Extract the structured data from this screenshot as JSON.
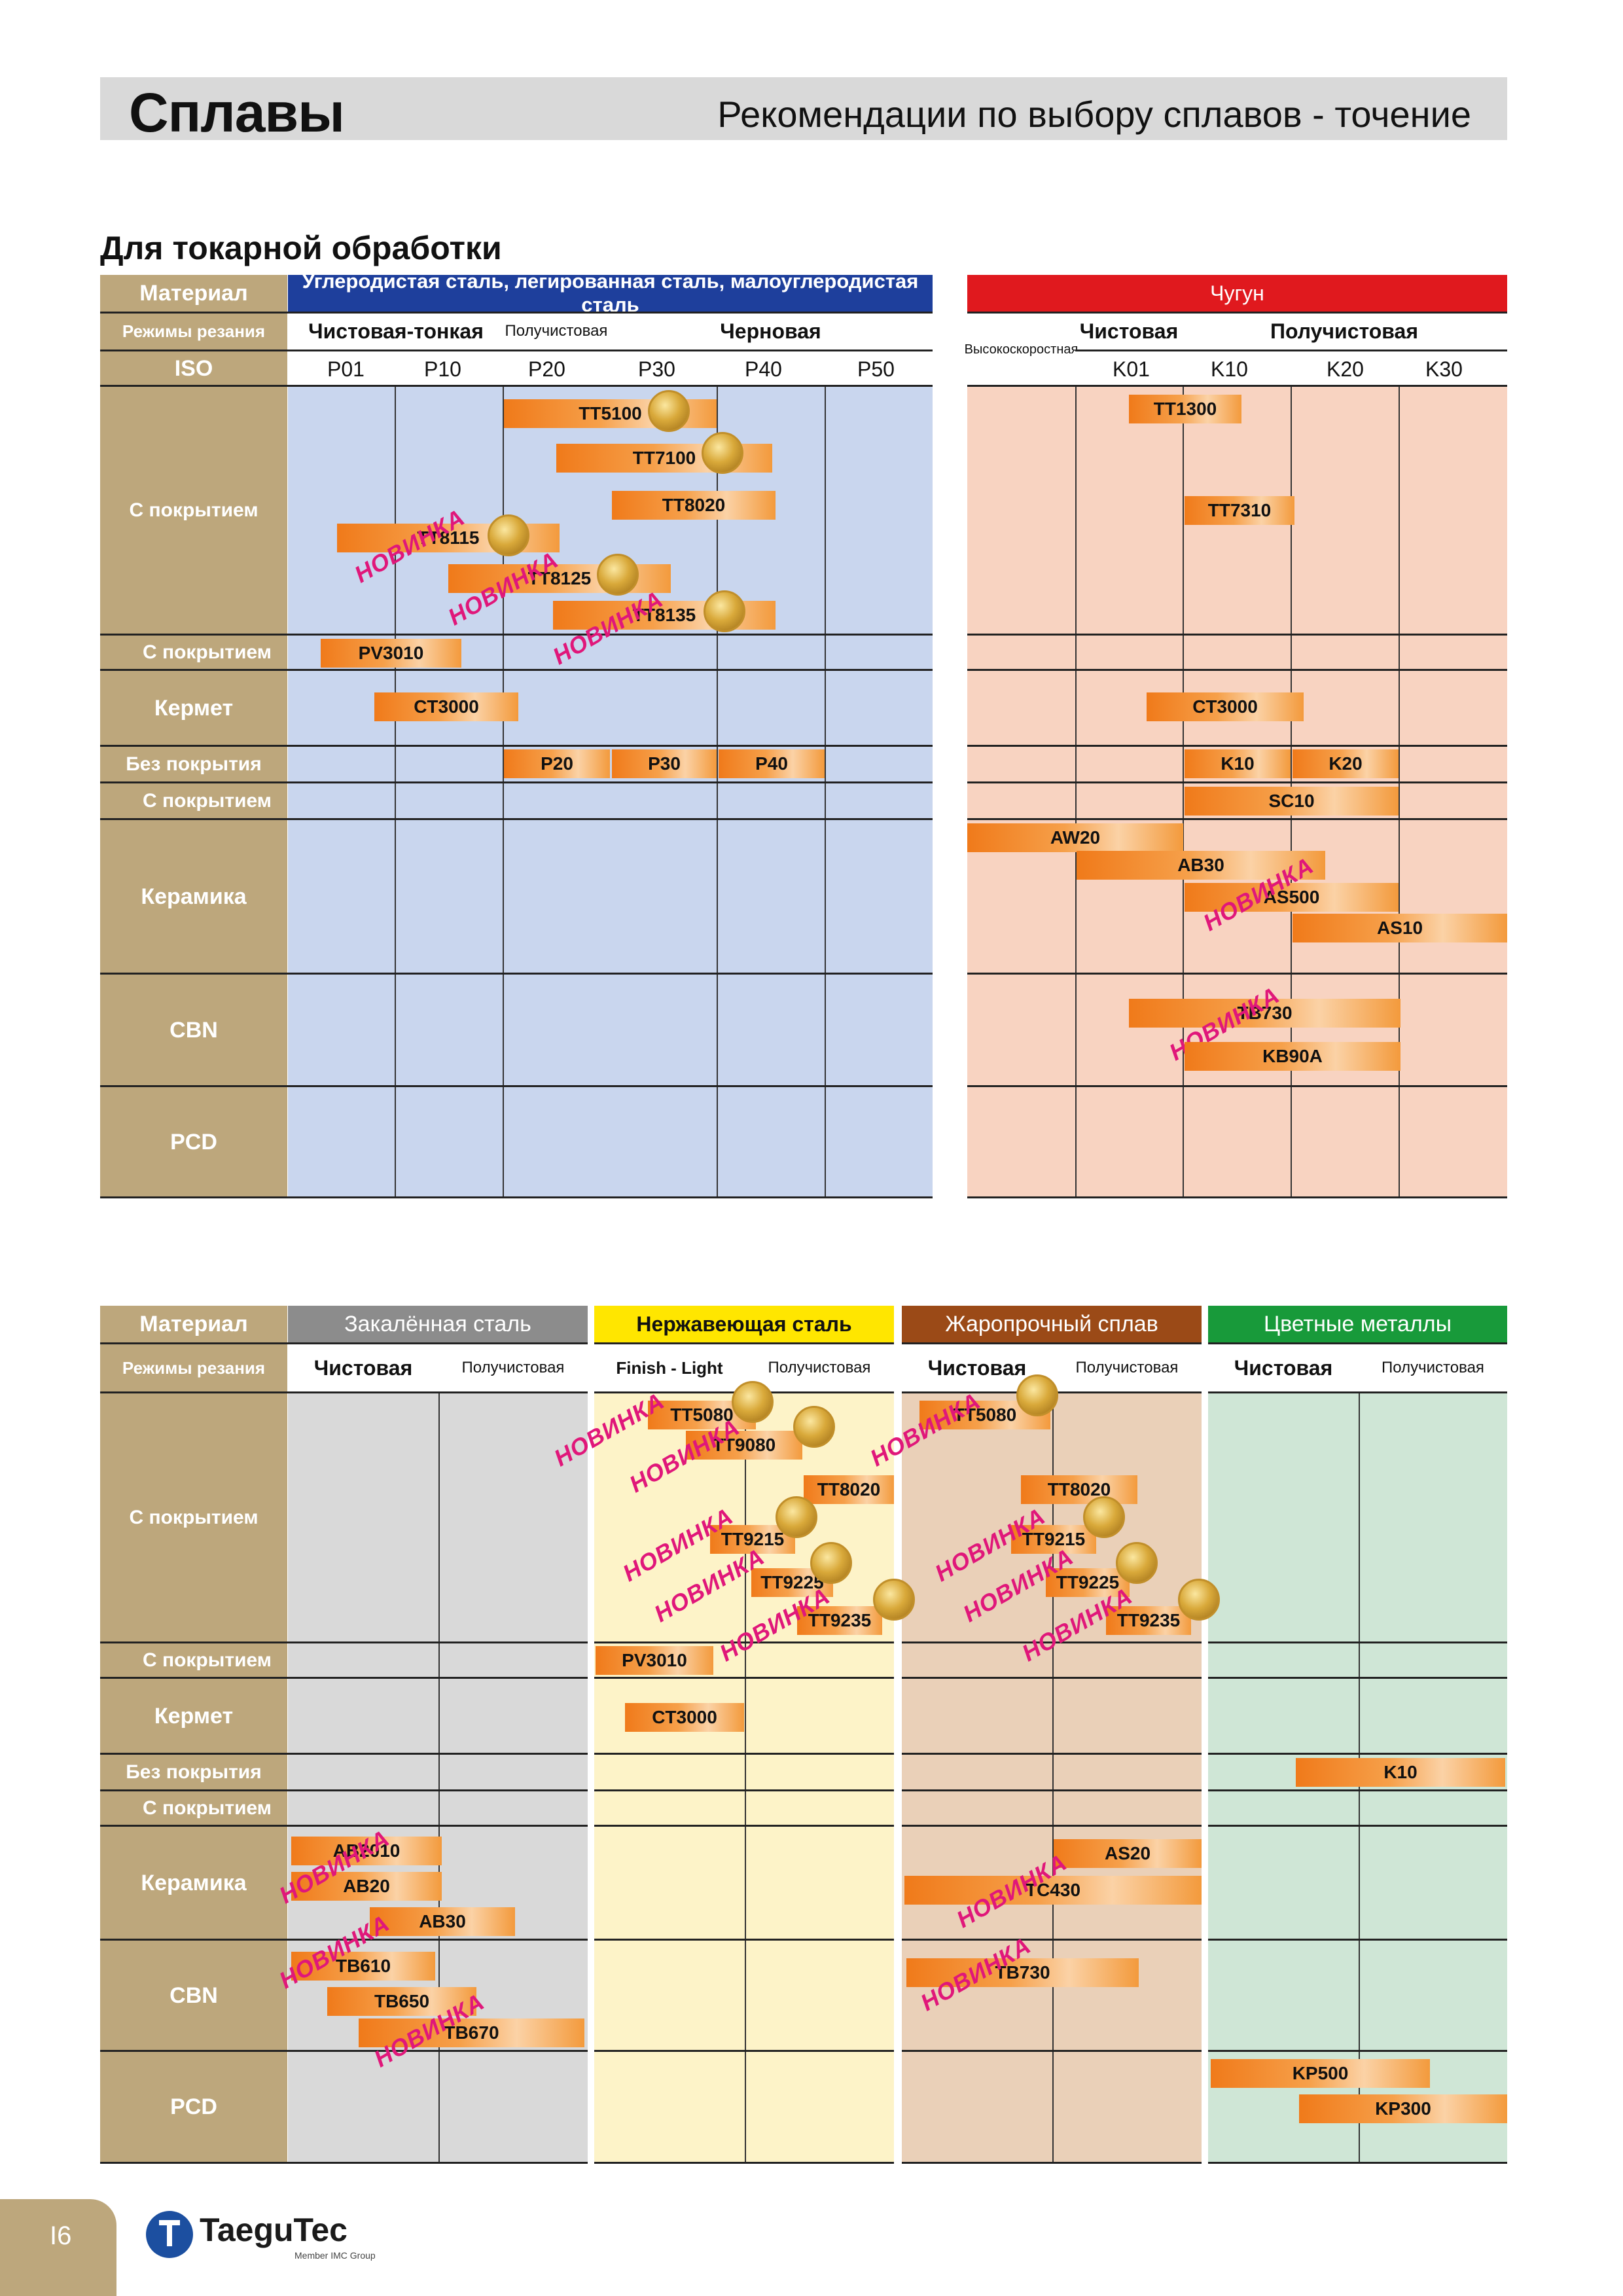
{
  "header": {
    "title": "Сплавы",
    "subtitle": "Рекомендации по выбору сплавов - точение"
  },
  "section_title": "Для токарной обработки",
  "rows": {
    "material": "Материал",
    "modes": "Режимы резания",
    "iso": "ISO",
    "coated": "С покрытием",
    "cermet": "Кермет",
    "uncoated": "Без покрытия",
    "ceramic": "Керамика",
    "cbn": "CBN",
    "pcd": "PCD"
  },
  "new_label": "НОВИНКА",
  "top_table": {
    "steel": {
      "title": "Углеродистая сталь, легированная сталь, малоуглеродистая сталь",
      "modes": [
        "Чистовая-тонкая",
        "Получистовая",
        "Черновая"
      ],
      "iso": [
        "P01",
        "P10",
        "P20",
        "P30",
        "P40",
        "P50"
      ],
      "grades": [
        "TT5100",
        "TT7100",
        "TT8020",
        "TT8115",
        "TT8125",
        "TT8135",
        "PV3010",
        "CT3000",
        "P20",
        "P30",
        "P40"
      ]
    },
    "cast_iron": {
      "title": "Чугун",
      "modes": [
        "Высокоскоростная",
        "Чистовая",
        "Получистовая"
      ],
      "iso": [
        "K01",
        "K10",
        "K20",
        "K30"
      ],
      "grades": [
        "TT1300",
        "TT7310",
        "CT3000",
        "K10",
        "K20",
        "SC10",
        "AW20",
        "AB30",
        "AS500",
        "AS10",
        "TB730",
        "KB90A"
      ]
    }
  },
  "bottom_table": {
    "hardened": {
      "title": "Закалённая сталь",
      "modes": [
        "Чистовая",
        "Получистовая"
      ],
      "grades": [
        "AB2010",
        "AB20",
        "AB30",
        "TB610",
        "TB650",
        "TB670"
      ]
    },
    "stainless": {
      "title": "Нержавеющая сталь",
      "modes": [
        "Finish - Light",
        "Получистовая"
      ],
      "grades": [
        "TT5080",
        "TT9080",
        "TT8020",
        "TT9215",
        "TT9225",
        "TT9235",
        "PV3010",
        "CT3000"
      ]
    },
    "heat_resistant": {
      "title": "Жаропрочный сплав",
      "modes": [
        "Чистовая",
        "Получистовая"
      ],
      "grades": [
        "TT5080",
        "TT8020",
        "TT9215",
        "TT9225",
        "TT9235",
        "AS20",
        "TC430",
        "TB730"
      ]
    },
    "nonferrous": {
      "title": "Цветные металлы",
      "modes": [
        "Чистовая",
        "Получистовая"
      ],
      "grades": [
        "K10",
        "KP500",
        "KP300"
      ]
    }
  },
  "footer": {
    "page": "I6",
    "brand": "TaeguTec",
    "brand_sub": "Member IMC Group"
  },
  "colors": {
    "material_col": "#bda77c",
    "steel": "#c9d6ee",
    "cast_iron": "#f8d3c1",
    "hardened": "#d9d9d9",
    "stainless": "#fdf3c8",
    "heat": "#ead0b8",
    "nonferrous": "#cfe6d6",
    "bar": "#f39a3c",
    "new": "#e0177a"
  }
}
